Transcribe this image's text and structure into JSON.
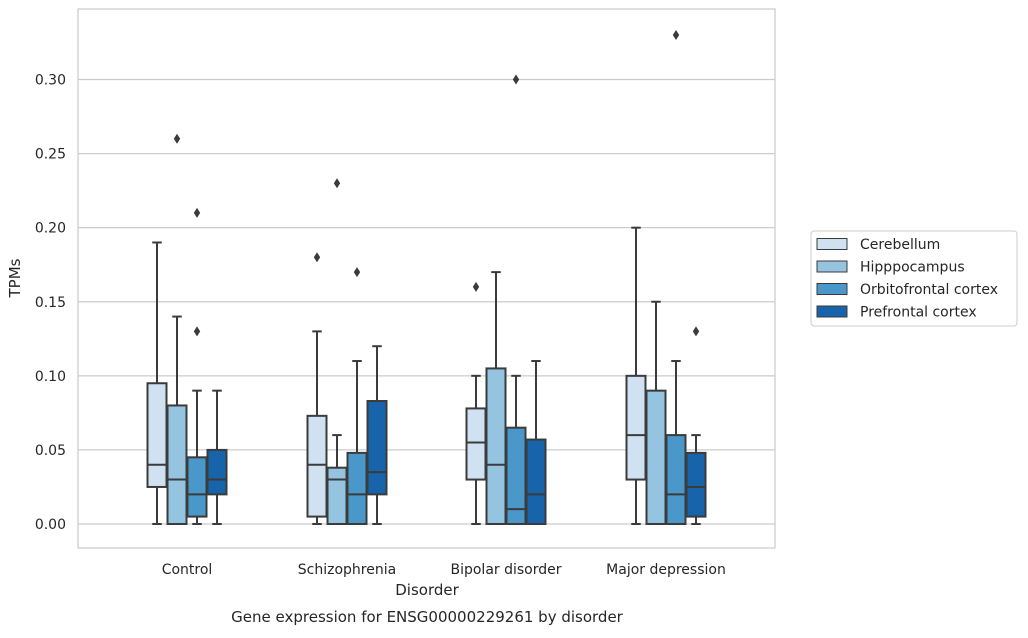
{
  "chart_data": {
    "type": "boxplot",
    "title": "",
    "caption": "Gene expression for ENSG00000229261 by disorder",
    "xlabel": "Disorder",
    "ylabel": "TPMs",
    "ylim": [
      -0.016,
      0.346
    ],
    "yticks": [
      "0.00",
      "0.05",
      "0.10",
      "0.15",
      "0.20",
      "0.25",
      "0.30"
    ],
    "grid": "horizontal",
    "legend_position": "right",
    "categories": [
      "Control",
      "Schizophrenia",
      "Bipolar disorder",
      "Major depression"
    ],
    "series": [
      {
        "name": "Cerebellum",
        "color": "#d0e1f2",
        "boxes": [
          {
            "whisker_low": 0.0,
            "q1": 0.025,
            "median": 0.04,
            "q3": 0.095,
            "whisker_high": 0.19,
            "outliers": []
          },
          {
            "whisker_low": 0.0,
            "q1": 0.005,
            "median": 0.04,
            "q3": 0.073,
            "whisker_high": 0.13,
            "outliers": [
              0.18
            ]
          },
          {
            "whisker_low": 0.0,
            "q1": 0.03,
            "median": 0.055,
            "q3": 0.078,
            "whisker_high": 0.1,
            "outliers": [
              0.16
            ]
          },
          {
            "whisker_low": 0.0,
            "q1": 0.03,
            "median": 0.06,
            "q3": 0.1,
            "whisker_high": 0.2,
            "outliers": []
          }
        ]
      },
      {
        "name": "Hipppocampus",
        "color": "#94c4df",
        "boxes": [
          {
            "whisker_low": 0.0,
            "q1": 0.0,
            "median": 0.03,
            "q3": 0.08,
            "whisker_high": 0.14,
            "outliers": [
              0.26
            ]
          },
          {
            "whisker_low": 0.0,
            "q1": 0.0,
            "median": 0.03,
            "q3": 0.038,
            "whisker_high": 0.06,
            "outliers": [
              0.23
            ]
          },
          {
            "whisker_low": 0.0,
            "q1": 0.0,
            "median": 0.04,
            "q3": 0.105,
            "whisker_high": 0.17,
            "outliers": []
          },
          {
            "whisker_low": 0.0,
            "q1": 0.0,
            "median": 0.0,
            "q3": 0.09,
            "whisker_high": 0.15,
            "outliers": []
          }
        ]
      },
      {
        "name": "Orbitofrontal cortex",
        "color": "#4a98c9",
        "boxes": [
          {
            "whisker_low": 0.0,
            "q1": 0.005,
            "median": 0.02,
            "q3": 0.045,
            "whisker_high": 0.09,
            "outliers": [
              0.21,
              0.13
            ]
          },
          {
            "whisker_low": 0.0,
            "q1": 0.0,
            "median": 0.02,
            "q3": 0.048,
            "whisker_high": 0.11,
            "outliers": [
              0.17
            ]
          },
          {
            "whisker_low": 0.0,
            "q1": 0.0,
            "median": 0.01,
            "q3": 0.065,
            "whisker_high": 0.1,
            "outliers": [
              0.3
            ]
          },
          {
            "whisker_low": 0.0,
            "q1": 0.0,
            "median": 0.02,
            "q3": 0.06,
            "whisker_high": 0.11,
            "outliers": [
              0.33
            ]
          }
        ]
      },
      {
        "name": "Prefrontal cortex",
        "color": "#1764ab",
        "boxes": [
          {
            "whisker_low": 0.0,
            "q1": 0.02,
            "median": 0.03,
            "q3": 0.05,
            "whisker_high": 0.09,
            "outliers": []
          },
          {
            "whisker_low": 0.0,
            "q1": 0.02,
            "median": 0.035,
            "q3": 0.083,
            "whisker_high": 0.12,
            "outliers": []
          },
          {
            "whisker_low": 0.0,
            "q1": 0.0,
            "median": 0.02,
            "q3": 0.057,
            "whisker_high": 0.11,
            "outliers": []
          },
          {
            "whisker_low": 0.0,
            "q1": 0.005,
            "median": 0.025,
            "q3": 0.048,
            "whisker_high": 0.06,
            "outliers": [
              0.13
            ]
          }
        ]
      }
    ]
  }
}
